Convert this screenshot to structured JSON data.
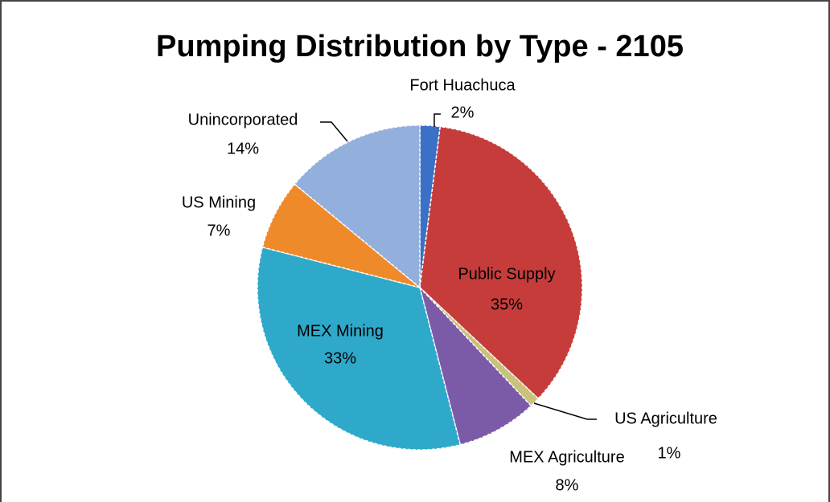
{
  "chart_data": {
    "type": "pie",
    "title": "Pumping Distribution by Type - 2105",
    "categories": [
      "Fort Huachuca",
      "Public Supply",
      "US Agriculture",
      "MEX Agriculture",
      "MEX Mining",
      "US Mining",
      "Unincorporated"
    ],
    "values": [
      2,
      35,
      1,
      8,
      33,
      7,
      14
    ],
    "value_labels": [
      "2%",
      "35%",
      "1%",
      "8%",
      "33%",
      "7%",
      "14%"
    ],
    "colors": [
      "#3a70c6",
      "#c63c3a",
      "#c9c27c",
      "#7b5aa8",
      "#2fa9c9",
      "#ef8a2b",
      "#93afdc"
    ]
  }
}
